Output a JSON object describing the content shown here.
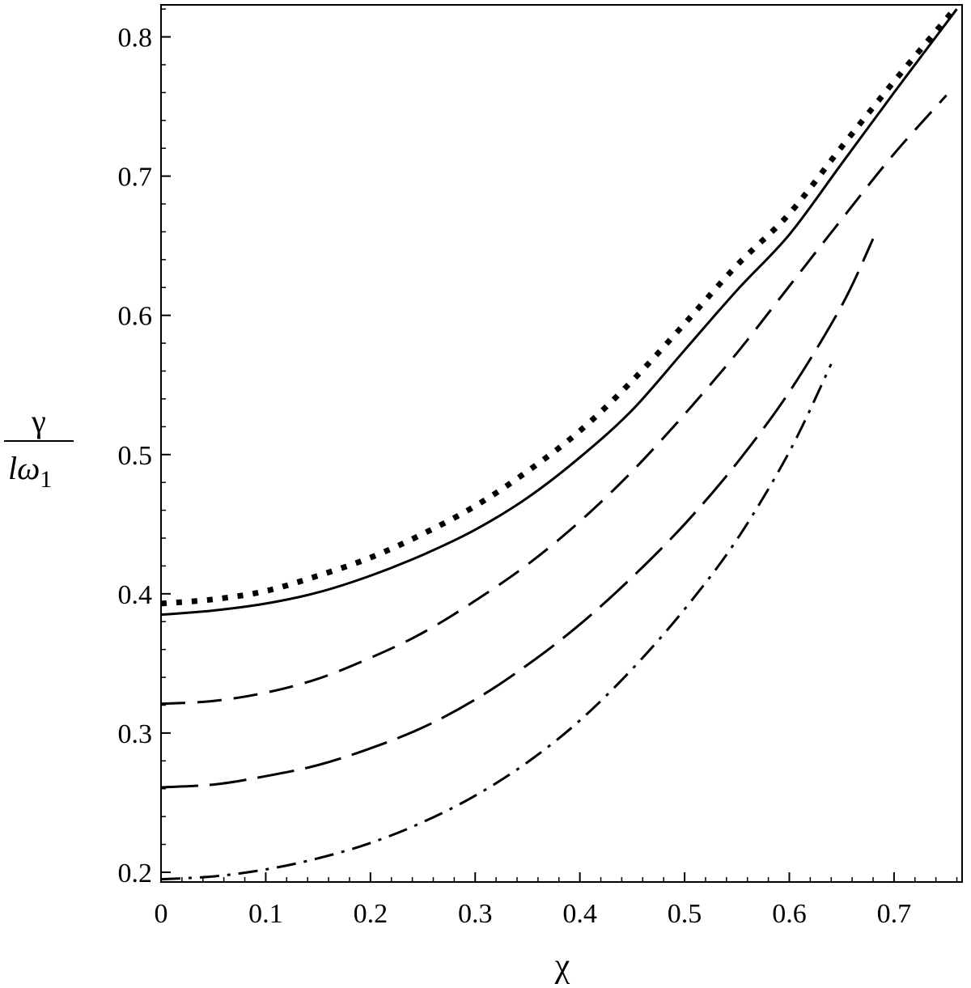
{
  "chart_data": {
    "type": "line",
    "xlabel": "χ",
    "ylabel": {
      "numerator": "γ",
      "denominator": "lω",
      "denominator_subscript": "1"
    },
    "xlim": [
      0,
      0.765
    ],
    "ylim": [
      0.193,
      0.823
    ],
    "x_ticks": [
      0,
      0.1,
      0.2,
      0.3,
      0.4,
      0.5,
      0.6,
      0.7
    ],
    "x_tick_labels": [
      "0",
      "0.1",
      "0.2",
      "0.3",
      "0.4",
      "0.5",
      "0.6",
      "0.7"
    ],
    "y_ticks": [
      0.2,
      0.3,
      0.4,
      0.5,
      0.6,
      0.7,
      0.8
    ],
    "y_tick_labels": [
      "0.2",
      "0.3",
      "0.4",
      "0.5",
      "0.6",
      "0.7",
      "0.8"
    ],
    "grid": false,
    "legend": "none",
    "line_color": "#000000",
    "series": [
      {
        "style": "dotted",
        "x": [
          0,
          0.05,
          0.1,
          0.15,
          0.2,
          0.25,
          0.3,
          0.35,
          0.4,
          0.45,
          0.5,
          0.55,
          0.6,
          0.65,
          0.7,
          0.76
        ],
        "y": [
          0.393,
          0.396,
          0.402,
          0.413,
          0.426,
          0.443,
          0.463,
          0.488,
          0.517,
          0.553,
          0.594,
          0.636,
          0.673,
          0.721,
          0.768,
          0.822
        ]
      },
      {
        "style": "solid",
        "x": [
          0,
          0.05,
          0.1,
          0.15,
          0.2,
          0.25,
          0.3,
          0.35,
          0.4,
          0.45,
          0.5,
          0.55,
          0.6,
          0.65,
          0.7,
          0.76
        ],
        "y": [
          0.385,
          0.388,
          0.393,
          0.401,
          0.413,
          0.428,
          0.446,
          0.469,
          0.498,
          0.532,
          0.575,
          0.618,
          0.658,
          0.709,
          0.76,
          0.82
        ]
      },
      {
        "style": "dashed",
        "x": [
          0,
          0.05,
          0.1,
          0.15,
          0.2,
          0.25,
          0.3,
          0.35,
          0.4,
          0.45,
          0.5,
          0.55,
          0.6,
          0.65,
          0.7,
          0.75
        ],
        "y": [
          0.321,
          0.323,
          0.329,
          0.339,
          0.354,
          0.372,
          0.395,
          0.421,
          0.452,
          0.488,
          0.529,
          0.573,
          0.621,
          0.669,
          0.716,
          0.758
        ]
      },
      {
        "style": "long-dashed",
        "x": [
          0,
          0.05,
          0.1,
          0.15,
          0.2,
          0.25,
          0.3,
          0.35,
          0.4,
          0.45,
          0.5,
          0.55,
          0.6,
          0.65,
          0.68
        ],
        "y": [
          0.261,
          0.263,
          0.269,
          0.277,
          0.289,
          0.304,
          0.324,
          0.349,
          0.378,
          0.412,
          0.45,
          0.494,
          0.545,
          0.607,
          0.655
        ]
      },
      {
        "style": "dash-dot",
        "x": [
          0,
          0.05,
          0.1,
          0.15,
          0.2,
          0.25,
          0.3,
          0.35,
          0.4,
          0.45,
          0.5,
          0.55,
          0.6,
          0.64
        ],
        "y": [
          0.195,
          0.197,
          0.202,
          0.21,
          0.221,
          0.236,
          0.255,
          0.279,
          0.309,
          0.346,
          0.389,
          0.439,
          0.502,
          0.565
        ]
      }
    ]
  }
}
